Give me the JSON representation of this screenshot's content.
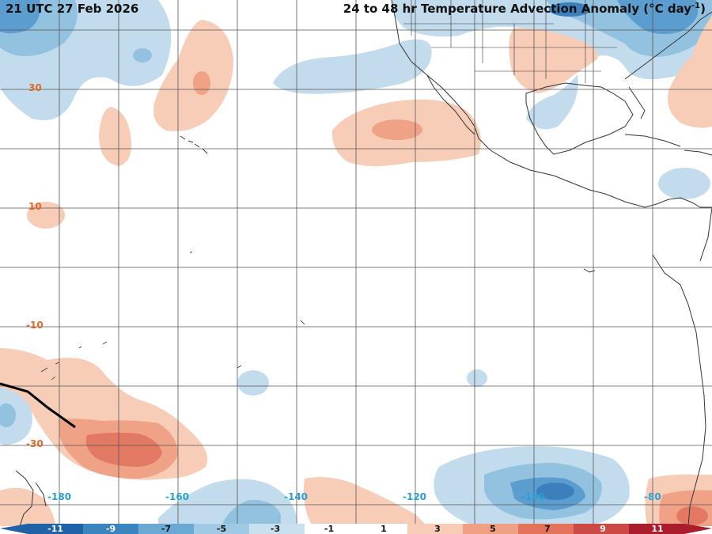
{
  "valid_time": "21 UTC 27 Feb 2026",
  "product": {
    "title_main": "24 to 48 hr Temperature Advection Anomaly (",
    "title_units": "°C day",
    "title_exp": "-1",
    "title_close": ")"
  },
  "lat_labels": [
    "30",
    "10",
    "-10",
    "-30"
  ],
  "lon_labels": [
    "-180",
    "-160",
    "-140",
    "-120",
    "-100",
    "-80"
  ],
  "colorbar": {
    "ticks": [
      "-11",
      "-9",
      "-7",
      "-5",
      "-3",
      "-1",
      "1",
      "3",
      "5",
      "7",
      "9",
      "11"
    ],
    "colors": [
      "#1f62a8",
      "#3a84c0",
      "#6aa9d4",
      "#9fc9e4",
      "#c8e0ef",
      "#ffffff",
      "#ffffff",
      "#f8cdb8",
      "#f0a083",
      "#e4725a",
      "#cc4a45",
      "#a91d2c"
    ]
  },
  "colors": {
    "cold_light": "#c3dced",
    "cold_mid": "#93c2e1",
    "cold_dark": "#5b9dcf",
    "cold_core": "#3c7fbd",
    "warm_light": "#f7cdb8",
    "warm_mid": "#efa285",
    "warm_dark": "#e27963",
    "land_outline": "#333333",
    "grid": "#555555",
    "lat_label": "#e06a2a",
    "lon_label": "#2a9fd0"
  }
}
